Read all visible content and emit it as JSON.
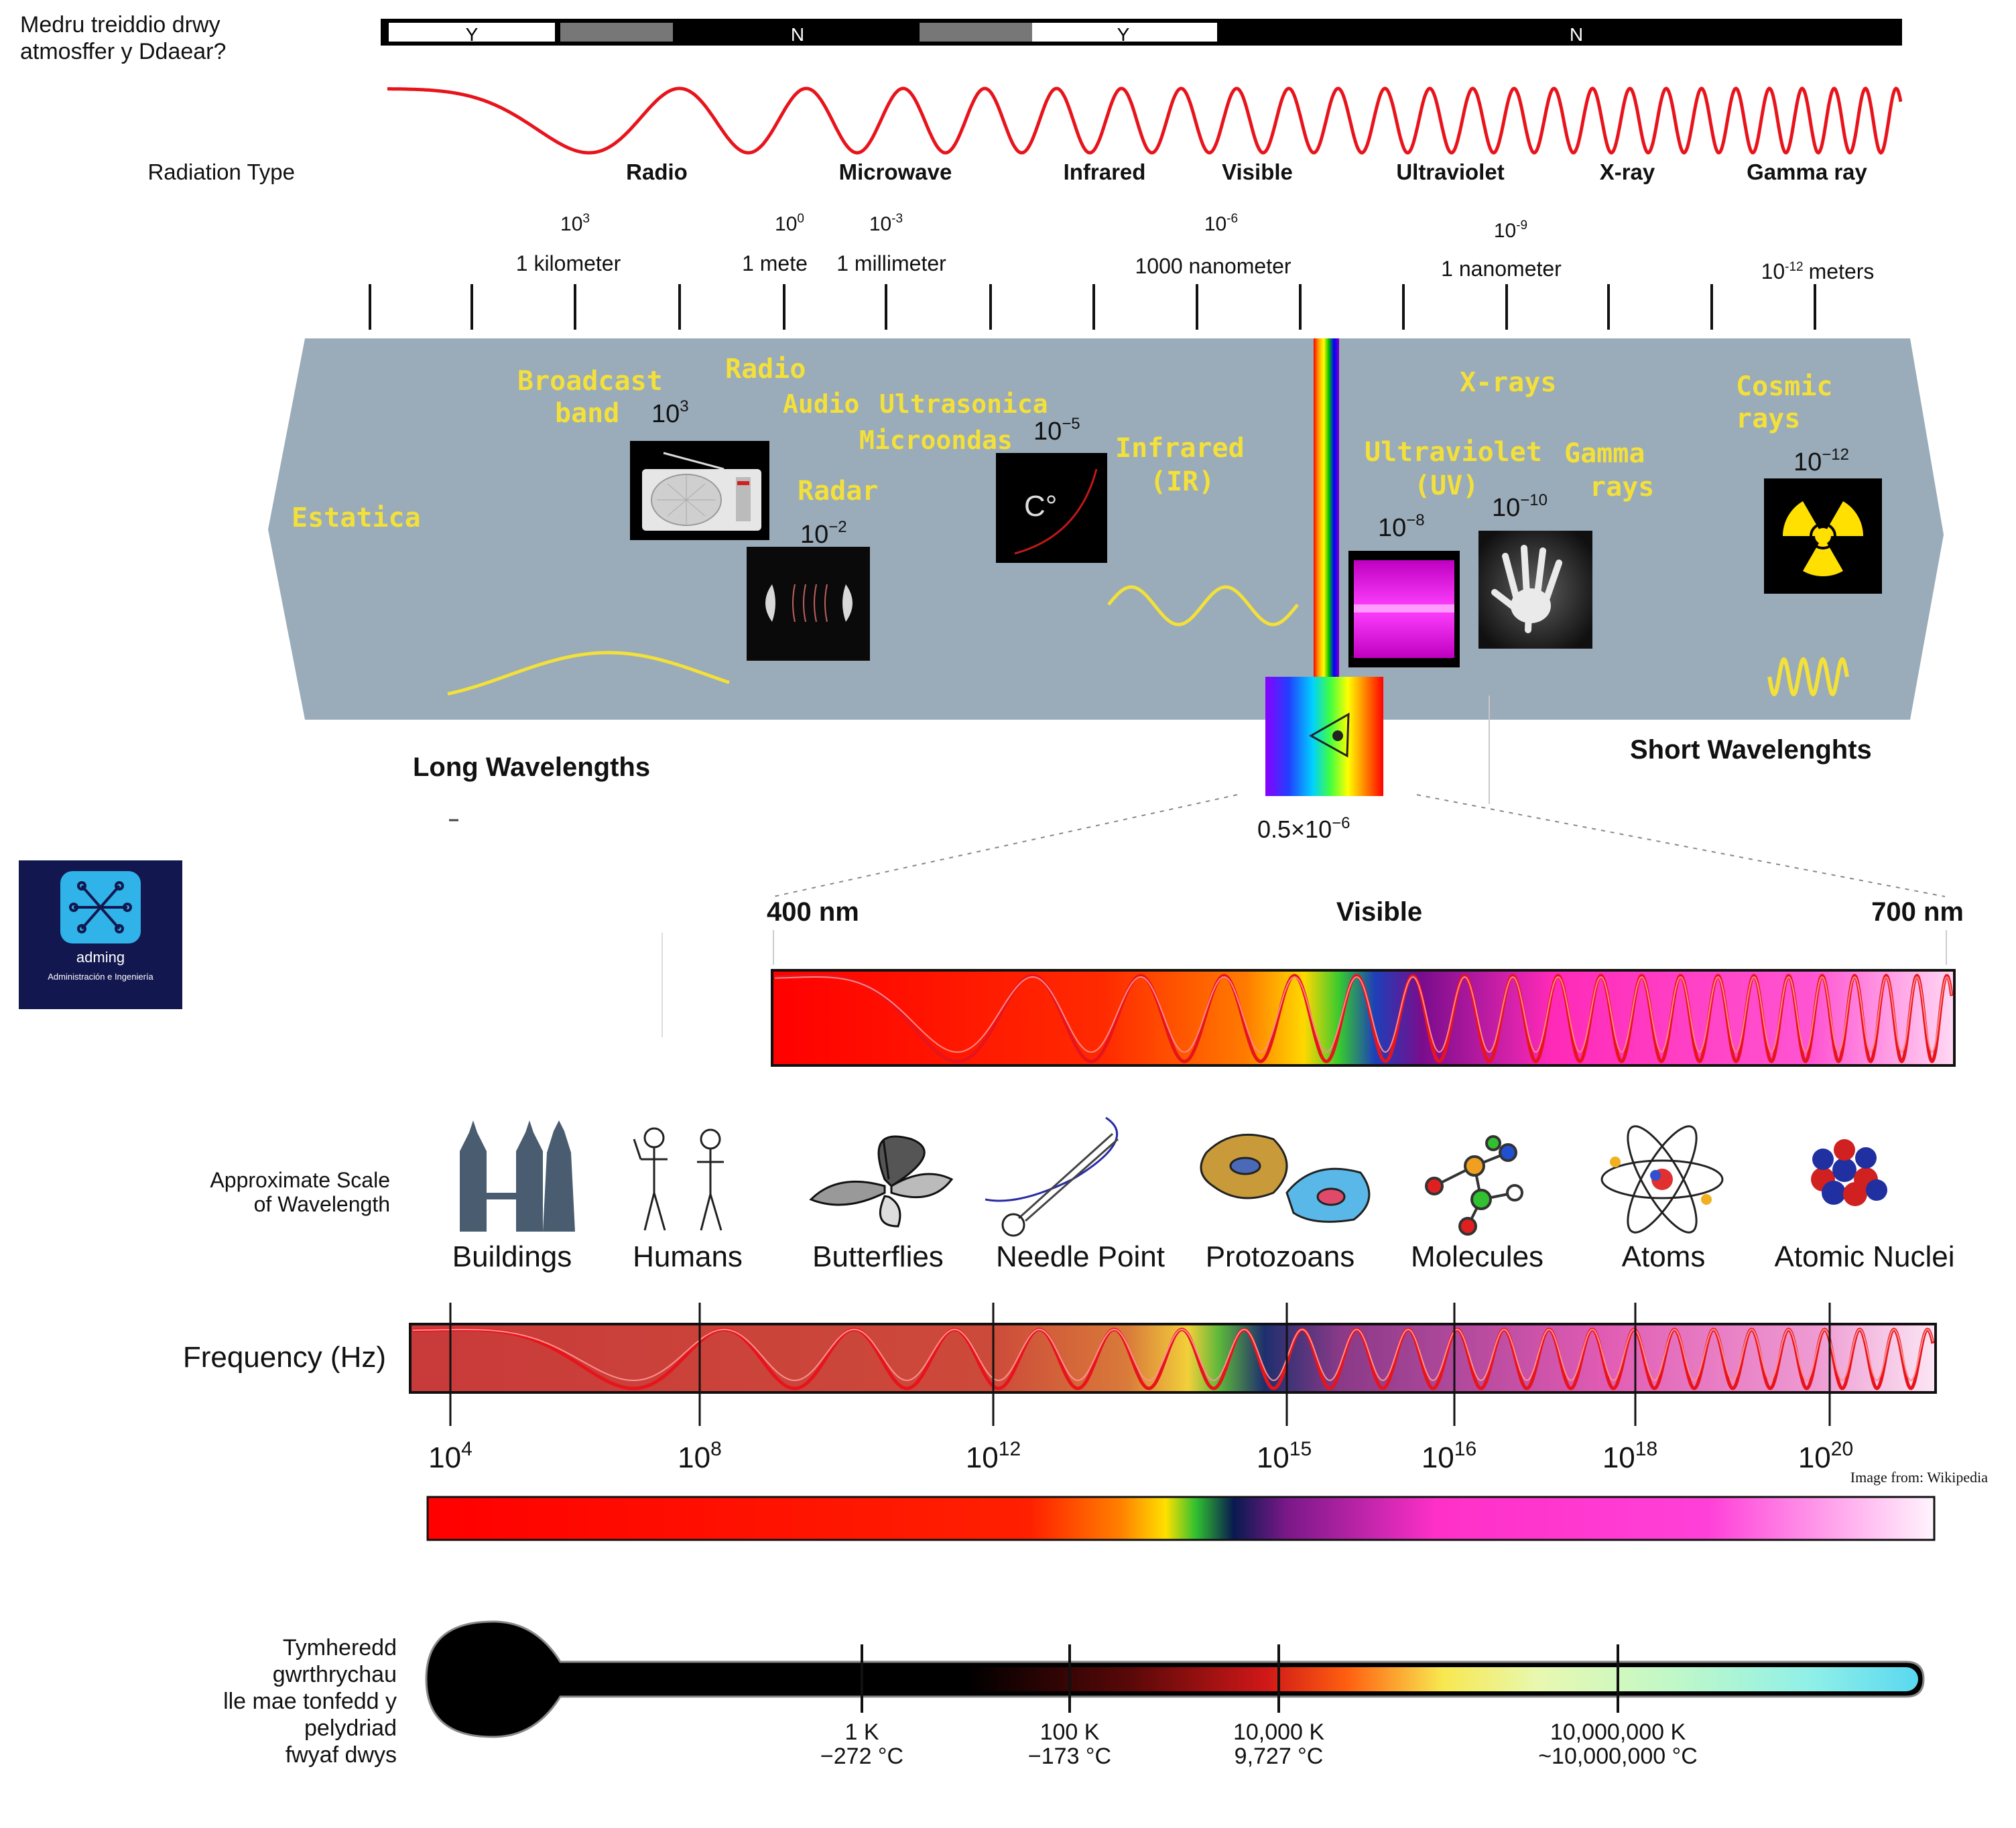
{
  "atmosphere": {
    "question_line1": "Medru treiddio drwy",
    "question_line2": "atmosffer y Ddaear?",
    "segments": [
      "Y",
      "N",
      "Y",
      "N"
    ]
  },
  "radiation_type": {
    "label": "Radiation Type",
    "types": [
      "Radio",
      "Microwave",
      "Infrared",
      "Visible",
      "Ultraviolet",
      "X-ray",
      "Gamma ray"
    ]
  },
  "wavelength_scale": {
    "exponents": [
      "10",
      "10",
      "10",
      "10",
      "10",
      "10"
    ],
    "exponent_powers": [
      "3",
      "0",
      "-3",
      "-6",
      "-9",
      "-12"
    ],
    "labels": [
      "1 kilometer",
      "1 mete",
      "1 millimeter",
      "1000 nanometer",
      "1 nanometer",
      "meters"
    ]
  },
  "spectrum_band": {
    "estatica": "Estatica",
    "broadcast_line1": "Broadcast",
    "broadcast_line2": "band",
    "radio": "Radio",
    "audio": "Audio",
    "ultrasonica": "Ultrasonica",
    "microondas": "Microondas",
    "radar": "Radar",
    "infrared_line1": "Infrared",
    "infrared_line2": "(IR)",
    "uv_line1": "Ultraviolet",
    "uv_line2": "(UV)",
    "xrays": "X-rays",
    "gamma_line1": "Gamma",
    "gamma_line2": "rays",
    "cosmic_line1": "Cosmic",
    "cosmic_line2": "rays",
    "exp_broadcast": "3",
    "exp_radar": "−2",
    "exp_micro": "−5",
    "exp_uv": "−8",
    "exp_xray": "−10",
    "exp_cosmic": "−12",
    "ten": "10",
    "micro_icon_text": "C°",
    "long_wavelengths": "Long Wavelengths",
    "short_wavelengths": "Short Wavelenghts",
    "visible_base": "0.5×10",
    "visible_exp": "−6"
  },
  "logo": {
    "name": "adming",
    "tagline": "Administración e Ingeniería"
  },
  "visible_zoom": {
    "left": "400 nm",
    "center": "Visible",
    "right": "700 nm"
  },
  "scale": {
    "label_line1": "Approximate Scale",
    "label_line2": "of Wavelength",
    "items": [
      "Buildings",
      "Humans",
      "Butterflies",
      "Needle Point",
      "Protozoans",
      "Molecules",
      "Atoms",
      "Atomic Nuclei"
    ]
  },
  "frequency": {
    "label": "Frequency (Hz)",
    "base": "10",
    "powers": [
      "4",
      "8",
      "12",
      "15",
      "16",
      "18",
      "20"
    ],
    "credit": "Image from: Wikipedia"
  },
  "temperature": {
    "label_lines": [
      "Tymheredd",
      "gwrthrychau",
      "lle mae tonfedd y",
      "pelydriad",
      "fwyaf dwys"
    ],
    "ticks": [
      {
        "k": "1 K",
        "c": "−272 °C"
      },
      {
        "k": "100 K",
        "c": "−173 °C"
      },
      {
        "k": "10,000 K",
        "c": "9,727 °C"
      },
      {
        "k": "10,000,000 K",
        "c": "~10,000,000 °C"
      }
    ]
  },
  "colors": {
    "band_grey": "#9aabb9",
    "band_text": "#f3e03a",
    "wave_red": "#e8141c",
    "logo_bg": "#13174f",
    "logo_icon": "#2fb3e8"
  }
}
